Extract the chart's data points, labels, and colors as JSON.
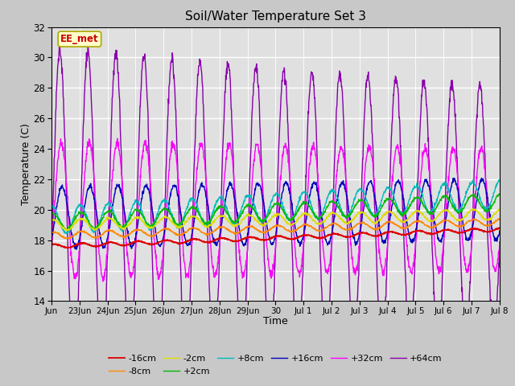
{
  "title": "Soil/Water Temperature Set 3",
  "xlabel": "Time",
  "ylabel": "Temperature (C)",
  "ylim": [
    14,
    32
  ],
  "yticks": [
    14,
    16,
    18,
    20,
    22,
    24,
    26,
    28,
    30,
    32
  ],
  "fig_bg": "#c8c8c8",
  "plot_bg": "#e0e0e0",
  "annotation_text": "EE_met",
  "annotation_bg": "#ffffcc",
  "annotation_border": "#aaaa00",
  "annotation_text_color": "#cc0000",
  "colors": {
    "-16cm": "#dd0000",
    "-8cm": "#ff8800",
    "-2cm": "#dddd00",
    "+2cm": "#00bb00",
    "+8cm": "#00bbbb",
    "+16cm": "#0000bb",
    "+32cm": "#ff00ff",
    "+64cm": "#8800aa"
  },
  "tick_labels": [
    "Jun",
    "23Jun",
    "24Jun",
    "25Jun",
    "26Jun",
    "27Jun",
    "28Jun",
    "29Jun",
    "30",
    "Jul 1",
    "Jul 2",
    "Jul 3",
    "Jul 4",
    "Jul 5",
    "Jul 6",
    "Jul 7",
    "Jul 8"
  ]
}
